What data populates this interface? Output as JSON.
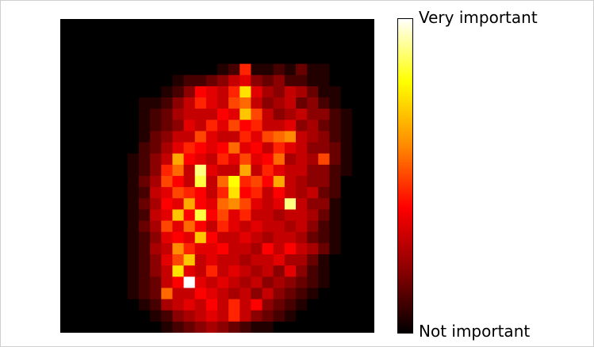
{
  "chart_data": {
    "type": "heatmap",
    "title": "",
    "xlabel": "",
    "ylabel": "",
    "colormap": "hot",
    "colorbar": {
      "top_label": "Very important",
      "bottom_label": "Not important",
      "colors": [
        "#000000",
        "#8b0000",
        "#ff0000",
        "#ff8c00",
        "#ffff00",
        "#ffffff"
      ]
    },
    "grid": false,
    "rows": 28,
    "cols": 28,
    "values": [
      [
        0,
        0,
        0,
        0,
        0,
        0,
        0,
        0,
        0,
        0,
        0,
        0,
        0,
        0,
        0,
        0,
        0,
        0,
        0,
        0,
        0,
        0,
        0,
        0,
        0,
        0,
        0,
        0
      ],
      [
        0,
        0,
        0,
        0,
        0,
        0,
        0,
        0,
        0,
        0,
        0,
        0,
        0,
        0,
        0,
        0,
        0,
        0,
        0,
        0,
        0,
        0,
        0,
        0,
        0,
        0,
        0,
        0
      ],
      [
        0,
        0,
        0,
        0,
        0,
        0,
        0,
        0,
        0,
        0,
        0,
        0,
        0,
        0,
        0,
        0,
        0,
        0,
        0,
        0,
        0,
        0,
        0,
        0,
        0,
        0,
        0,
        0
      ],
      [
        0,
        0,
        0,
        0,
        0,
        0,
        0,
        0,
        0,
        0,
        0,
        0,
        0,
        0,
        0,
        0,
        0,
        0,
        0,
        0,
        0,
        0,
        0,
        0,
        0,
        0,
        0,
        0
      ],
      [
        0,
        0,
        0,
        0,
        0,
        0,
        0,
        0,
        0,
        0,
        0,
        0,
        0,
        0,
        0.05,
        0.1,
        0.45,
        0.05,
        0.05,
        0.1,
        0.05,
        0.15,
        0.05,
        0.05,
        0,
        0,
        0,
        0
      ],
      [
        0,
        0,
        0,
        0,
        0,
        0,
        0,
        0,
        0,
        0,
        0.05,
        0.1,
        0.1,
        0.15,
        0.2,
        0.3,
        0.35,
        0.2,
        0.15,
        0.2,
        0.1,
        0.1,
        0.05,
        0.05,
        0,
        0,
        0,
        0
      ],
      [
        0,
        0,
        0,
        0,
        0,
        0,
        0,
        0,
        0,
        0.05,
        0.1,
        0.2,
        0.4,
        0.35,
        0.3,
        0.45,
        0.75,
        0.35,
        0.25,
        0.2,
        0.3,
        0.25,
        0.15,
        0.05,
        0.05,
        0,
        0,
        0
      ],
      [
        0,
        0,
        0,
        0,
        0,
        0,
        0,
        0.05,
        0.05,
        0.1,
        0.2,
        0.3,
        0.45,
        0.35,
        0.3,
        0.5,
        0.55,
        0.3,
        0.2,
        0.25,
        0.3,
        0.15,
        0.2,
        0.1,
        0.05,
        0,
        0,
        0
      ],
      [
        0,
        0,
        0,
        0,
        0,
        0,
        0,
        0.05,
        0.1,
        0.15,
        0.25,
        0.3,
        0.3,
        0.3,
        0.4,
        0.35,
        0.7,
        0.5,
        0.3,
        0.2,
        0.25,
        0.3,
        0.2,
        0.2,
        0.1,
        0.05,
        0,
        0
      ],
      [
        0,
        0,
        0,
        0,
        0,
        0,
        0,
        0.05,
        0.1,
        0.15,
        0.2,
        0.35,
        0.3,
        0.45,
        0.35,
        0.5,
        0.4,
        0.45,
        0.3,
        0.3,
        0.35,
        0.2,
        0.25,
        0.15,
        0.1,
        0.05,
        0,
        0
      ],
      [
        0,
        0,
        0,
        0,
        0,
        0,
        0,
        0.05,
        0.15,
        0.2,
        0.3,
        0.3,
        0.5,
        0.35,
        0.3,
        0.3,
        0.45,
        0.35,
        0.5,
        0.55,
        0.6,
        0.3,
        0.25,
        0.2,
        0.1,
        0.05,
        0,
        0
      ],
      [
        0,
        0,
        0,
        0,
        0,
        0,
        0,
        0.1,
        0.15,
        0.25,
        0.35,
        0.45,
        0.4,
        0.35,
        0.4,
        0.55,
        0.35,
        0.4,
        0.3,
        0.45,
        0.35,
        0.3,
        0.2,
        0.2,
        0.15,
        0.05,
        0,
        0
      ],
      [
        0,
        0,
        0,
        0,
        0,
        0,
        0.05,
        0.1,
        0.2,
        0.3,
        0.65,
        0.4,
        0.35,
        0.3,
        0.45,
        0.35,
        0.5,
        0.35,
        0.4,
        0.55,
        0.25,
        0.3,
        0.25,
        0.5,
        0.15,
        0.05,
        0,
        0
      ],
      [
        0,
        0,
        0,
        0,
        0,
        0,
        0.05,
        0.1,
        0.2,
        0.45,
        0.55,
        0.3,
        0.9,
        0.35,
        0.3,
        0.3,
        0.65,
        0.3,
        0.45,
        0.35,
        0.3,
        0.3,
        0.2,
        0.2,
        0.1,
        0.05,
        0,
        0
      ],
      [
        0,
        0,
        0,
        0,
        0,
        0,
        0.05,
        0.15,
        0.25,
        0.5,
        0.4,
        0.3,
        0.85,
        0.3,
        0.55,
        0.8,
        0.45,
        0.5,
        0.4,
        0.65,
        0.3,
        0.25,
        0.2,
        0.2,
        0.1,
        0,
        0,
        0
      ],
      [
        0,
        0,
        0,
        0,
        0,
        0,
        0.05,
        0.1,
        0.3,
        0.35,
        0.5,
        0.45,
        0.4,
        0.3,
        0.45,
        0.75,
        0.4,
        0.45,
        0.3,
        0.4,
        0.3,
        0.25,
        0.3,
        0.15,
        0.1,
        0,
        0,
        0
      ],
      [
        0,
        0,
        0,
        0,
        0,
        0,
        0.05,
        0.15,
        0.25,
        0.4,
        0.35,
        0.65,
        0.4,
        0.35,
        0.55,
        0.6,
        0.5,
        0.35,
        0.3,
        0.35,
        0.9,
        0.3,
        0.2,
        0.2,
        0.05,
        0,
        0,
        0
      ],
      [
        0,
        0,
        0,
        0,
        0,
        0,
        0.05,
        0.1,
        0.3,
        0.35,
        0.7,
        0.4,
        0.85,
        0.4,
        0.5,
        0.35,
        0.45,
        0.3,
        0.3,
        0.25,
        0.3,
        0.3,
        0.25,
        0.15,
        0.05,
        0,
        0,
        0
      ],
      [
        0,
        0,
        0,
        0,
        0,
        0,
        0.05,
        0.15,
        0.25,
        0.5,
        0.35,
        0.55,
        0.4,
        0.3,
        0.45,
        0.35,
        0.3,
        0.35,
        0.3,
        0.3,
        0.25,
        0.3,
        0.2,
        0.1,
        0.05,
        0,
        0,
        0
      ],
      [
        0,
        0,
        0,
        0,
        0,
        0,
        0.05,
        0.1,
        0.2,
        0.35,
        0.4,
        0.35,
        0.7,
        0.4,
        0.3,
        0.3,
        0.35,
        0.3,
        0.25,
        0.3,
        0.3,
        0.25,
        0.15,
        0.1,
        0.05,
        0,
        0,
        0
      ],
      [
        0,
        0,
        0,
        0,
        0,
        0,
        0.05,
        0.1,
        0.25,
        0.3,
        0.6,
        0.45,
        0.35,
        0.35,
        0.4,
        0.3,
        0.3,
        0.25,
        0.4,
        0.3,
        0.4,
        0.3,
        0.25,
        0.15,
        0.05,
        0,
        0,
        0
      ],
      [
        0,
        0,
        0,
        0,
        0,
        0,
        0.05,
        0.1,
        0.2,
        0.35,
        0.5,
        0.7,
        0.3,
        0.35,
        0.3,
        0.3,
        0.25,
        0.3,
        0.3,
        0.35,
        0.25,
        0.25,
        0.15,
        0.05,
        0,
        0,
        0,
        0
      ],
      [
        0,
        0,
        0,
        0,
        0,
        0,
        0.05,
        0.1,
        0.2,
        0.3,
        0.75,
        0.35,
        0.3,
        0.45,
        0.3,
        0.35,
        0.3,
        0.25,
        0.3,
        0.2,
        0.35,
        0.2,
        0.1,
        0.05,
        0,
        0,
        0,
        0
      ],
      [
        0,
        0,
        0,
        0,
        0,
        0,
        0.05,
        0.1,
        0.15,
        0.3,
        0.4,
        1.0,
        0.35,
        0.3,
        0.35,
        0.3,
        0.25,
        0.3,
        0.2,
        0.25,
        0.2,
        0.15,
        0.1,
        0.05,
        0,
        0,
        0,
        0
      ],
      [
        0,
        0,
        0,
        0,
        0,
        0,
        0.05,
        0.1,
        0.15,
        0.55,
        0.3,
        0.3,
        0.4,
        0.35,
        0.3,
        0.25,
        0.3,
        0.2,
        0.3,
        0.2,
        0.15,
        0.1,
        0.05,
        0,
        0,
        0,
        0,
        0
      ],
      [
        0,
        0,
        0,
        0,
        0,
        0,
        0,
        0.05,
        0.1,
        0.25,
        0.3,
        0.35,
        0.3,
        0.4,
        0.3,
        0.45,
        0.3,
        0.4,
        0.2,
        0.15,
        0.1,
        0.05,
        0,
        0,
        0,
        0,
        0,
        0
      ],
      [
        0,
        0,
        0,
        0,
        0,
        0,
        0,
        0,
        0.05,
        0.1,
        0.2,
        0.25,
        0.3,
        0.35,
        0.3,
        0.45,
        0.3,
        0.2,
        0.15,
        0.1,
        0.05,
        0,
        0,
        0,
        0,
        0,
        0,
        0
      ],
      [
        0,
        0,
        0,
        0,
        0,
        0,
        0,
        0,
        0,
        0.05,
        0.1,
        0.15,
        0.2,
        0.25,
        0.2,
        0.15,
        0.1,
        0.05,
        0.05,
        0,
        0,
        0,
        0,
        0,
        0,
        0,
        0,
        0
      ]
    ]
  }
}
